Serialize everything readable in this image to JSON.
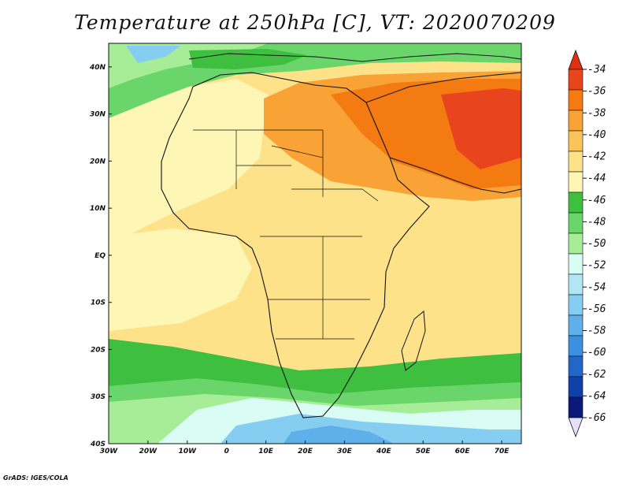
{
  "title": "Temperature at 250hPa [C], VT: 2020070209",
  "footer": "GrADS: IGES/COLA",
  "map": {
    "lon_range": [
      -30,
      75
    ],
    "lat_range": [
      -40,
      45
    ],
    "lon_ticks": [
      "30W",
      "20W",
      "10W",
      "0",
      "10E",
      "20E",
      "30E",
      "40E",
      "50E",
      "60E",
      "70E"
    ],
    "lon_values": [
      -30,
      -20,
      -10,
      0,
      10,
      20,
      30,
      40,
      50,
      60,
      70
    ],
    "lat_ticks": [
      "40S",
      "30S",
      "20S",
      "10S",
      "EQ",
      "10N",
      "20N",
      "30N",
      "40N"
    ],
    "lat_values": [
      -40,
      -30,
      -20,
      -10,
      0,
      10,
      20,
      30,
      40
    ]
  },
  "colorbar": {
    "labels": [
      "-34",
      "-36",
      "-38",
      "-40",
      "-42",
      "-44",
      "-46",
      "-48",
      "-50",
      "-52",
      "-54",
      "-56",
      "-58",
      "-60",
      "-62",
      "-64",
      "-66"
    ],
    "colors": [
      "#e8451e",
      "#f47a12",
      "#f9a235",
      "#fbc45a",
      "#fde28a",
      "#fdf6b4",
      "#3fbf3f",
      "#6ad56a",
      "#a7ec97",
      "#d9fcf5",
      "#b2e6f5",
      "#86cdf2",
      "#5fb0ea",
      "#3d8fe0",
      "#2266c8",
      "#1040a8",
      "#0b1a78"
    ],
    "top_arrow_color": "#e0300f",
    "bottom_arrow_color": "#e6e0fa"
  }
}
